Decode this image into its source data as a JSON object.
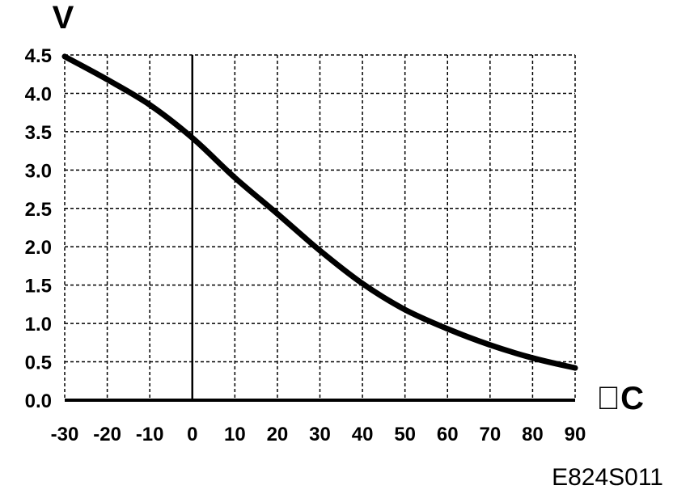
{
  "chart_data": {
    "type": "line",
    "ylabel": "V",
    "xlabel": "\u0000C",
    "code": "E824S011",
    "xlim": [
      -30,
      90
    ],
    "ylim": [
      0.0,
      4.5
    ],
    "x_ticks": [
      "-30",
      "-20",
      "-10",
      "0",
      "10",
      "20",
      "30",
      "40",
      "50",
      "60",
      "70",
      "80",
      "90"
    ],
    "y_ticks": [
      "0.0",
      "0.5",
      "1.0",
      "1.5",
      "2.0",
      "2.5",
      "3.0",
      "3.5",
      "4.0",
      "4.5"
    ],
    "grid": true,
    "series": [
      {
        "x": [
          -30,
          -20,
          -10,
          0,
          10,
          20,
          30,
          40,
          50,
          60,
          70,
          80,
          90
        ],
        "y": [
          4.48,
          4.18,
          3.85,
          3.42,
          2.9,
          2.43,
          1.95,
          1.52,
          1.18,
          0.93,
          0.72,
          0.55,
          0.42
        ]
      }
    ]
  }
}
